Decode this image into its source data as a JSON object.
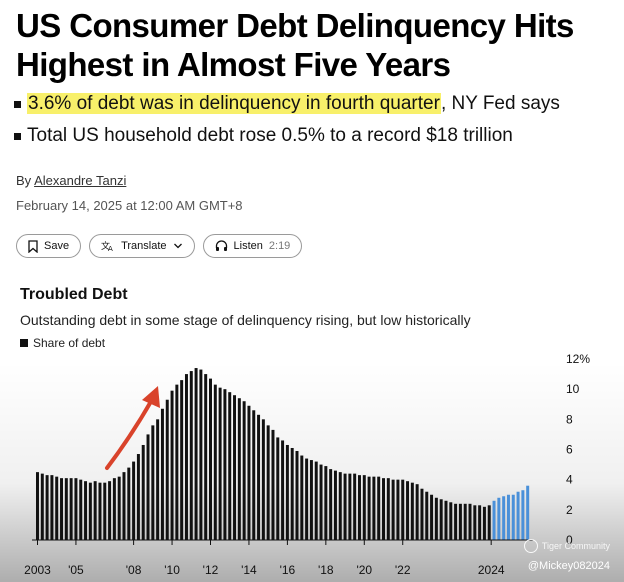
{
  "article": {
    "headline": "US Consumer Debt Delinquency Hits Highest in Almost Five Years",
    "bullets": [
      {
        "highlight": "3.6% of debt was in delinquency in fourth quarter",
        "rest": ", NY Fed says"
      },
      {
        "highlight": "",
        "rest": "Total US household debt rose 0.5% to a record $18 trillion"
      }
    ],
    "byline_prefix": "By",
    "author": "Alexandre Tanzi",
    "date": "February 14, 2025 at 12:00 AM GMT+8",
    "highlight_color": "#f8f06a"
  },
  "actions": {
    "save": {
      "label": "Save",
      "icon": "bookmark-icon"
    },
    "translate": {
      "label": "Translate",
      "icon": "translate-icon",
      "caret": "chevron-down-icon"
    },
    "listen": {
      "label": "Listen",
      "duration": "2:19",
      "icon": "headphones-icon"
    }
  },
  "chart_data": {
    "type": "bar",
    "title": "Troubled Debt",
    "subtitle": "Outstanding debt in some stage of delinquency rising, but low historically",
    "legend": [
      "Share of debt"
    ],
    "x_tick_labels": [
      "2003",
      "'05",
      "'08",
      "'10",
      "'12",
      "'14",
      "'16",
      "'18",
      "'20",
      "'22",
      "2024"
    ],
    "y_tick_labels": [
      "12%",
      "10",
      "8",
      "6",
      "4",
      "2",
      "0"
    ],
    "ylim": [
      0,
      12
    ],
    "grid": false,
    "colors": {
      "bars": "#111111",
      "highlight_bars": "#4a90d9",
      "arrow": "#d9432b"
    },
    "annotation": "red arrow pointing to peak",
    "series": [
      {
        "values": [
          4.5,
          4.4,
          4.3,
          4.3,
          4.2,
          4.1,
          4.1,
          4.1,
          4.1,
          4.0,
          3.9,
          3.8,
          3.9,
          3.8,
          3.8,
          3.9,
          4.1,
          4.2,
          4.5,
          4.8,
          5.2,
          5.7,
          6.3,
          7.0,
          7.6,
          8.0,
          8.7,
          9.3,
          9.9,
          10.3,
          10.6,
          11.0,
          11.2,
          11.4,
          11.3,
          11.0,
          10.7,
          10.3,
          10.1,
          10.0,
          9.8,
          9.6,
          9.4,
          9.2,
          8.9,
          8.6,
          8.3,
          8.0,
          7.6,
          7.3,
          6.8,
          6.6,
          6.3,
          6.1,
          5.9,
          5.6,
          5.4,
          5.3,
          5.2,
          5.0,
          4.9,
          4.7,
          4.6,
          4.5,
          4.4,
          4.4,
          4.4,
          4.3,
          4.3,
          4.2,
          4.2,
          4.2,
          4.1,
          4.1,
          4.0,
          4.0,
          4.0,
          3.9,
          3.8,
          3.7,
          3.4,
          3.2,
          3.0,
          2.8,
          2.7,
          2.6,
          2.5,
          2.4,
          2.4,
          2.4,
          2.4,
          2.3,
          2.3,
          2.2,
          2.3,
          2.6,
          2.8,
          2.9,
          3.0,
          3.0,
          3.2,
          3.3,
          3.6
        ],
        "highlight_from_index": 95
      }
    ]
  },
  "watermark": {
    "brand": "Tiger Community",
    "user": "@Mickey082024"
  }
}
